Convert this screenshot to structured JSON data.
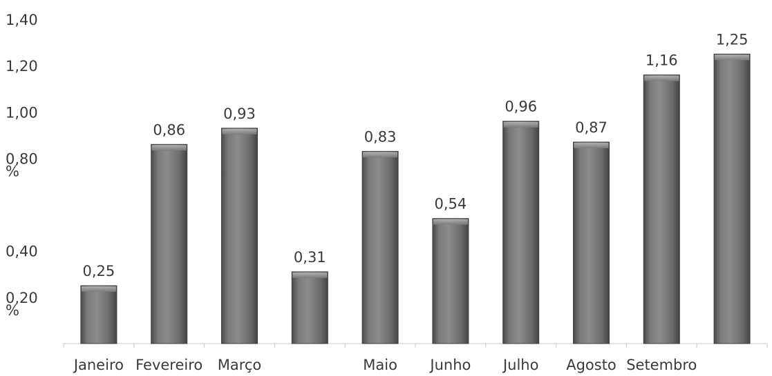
{
  "chart_data": {
    "type": "bar",
    "title": "",
    "xlabel": "",
    "ylabel": "",
    "categories": [
      "Janeiro",
      "Fevereiro",
      "Março",
      "",
      "Maio",
      "Junho",
      "Julho",
      "Agosto",
      "Setembro",
      ""
    ],
    "values": [
      0.25,
      0.86,
      0.93,
      0.31,
      0.83,
      0.54,
      0.96,
      0.87,
      1.16,
      1.25
    ],
    "data_labels": [
      "0,25",
      "0,86",
      "0,93",
      "0,31",
      "0,83",
      "0,54",
      "0,96",
      "0,87",
      "1,16",
      "1,25"
    ],
    "ylim": [
      0,
      1.4
    ],
    "y_ticks": [
      {
        "value": 1.4,
        "label": "1,40"
      },
      {
        "value": 1.2,
        "label": "1,20"
      },
      {
        "value": 1.0,
        "label": "1,00"
      },
      {
        "value": 0.8,
        "label": "0,80",
        "extra": "%"
      },
      {
        "value": 0.4,
        "label": "0,40"
      },
      {
        "value": 0.2,
        "label": "0,20",
        "extra": "%"
      }
    ],
    "grid": false,
    "legend": "none",
    "colors": {
      "bar_fill": "#6b6b6b",
      "bar_highlight": "#9a9a9a",
      "bar_shadow": "#3e3e3e",
      "axis": "#c8c8c8",
      "text": "#3a3a3a"
    }
  }
}
